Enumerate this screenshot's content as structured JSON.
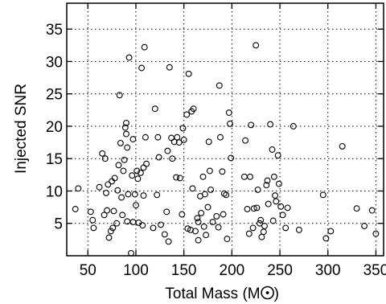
{
  "chart_data": {
    "type": "scatter",
    "title": "",
    "xlabel": "Total Mass (M",
    "xlabel_symbol": "sun-symbol",
    "ylabel": "Injected SNR",
    "xlim": [
      28,
      358
    ],
    "ylim": [
      0,
      39
    ],
    "xticks": [
      50,
      100,
      150,
      200,
      250,
      300,
      350
    ],
    "yticks": [
      5,
      10,
      15,
      20,
      25,
      30,
      35
    ],
    "grid": true,
    "marker": "open-circle",
    "marker_color": "#000000",
    "series": [
      {
        "points": [
          [
            37,
            7.2
          ],
          [
            40,
            10.4
          ],
          [
            53,
            6.8
          ],
          [
            55,
            5.5
          ],
          [
            56,
            4.3
          ],
          [
            62,
            10.6
          ],
          [
            65,
            15.8
          ],
          [
            67,
            6.3
          ],
          [
            68,
            15.0
          ],
          [
            69,
            9.7
          ],
          [
            70,
            7.0
          ],
          [
            71,
            11.0
          ],
          [
            72,
            2.8
          ],
          [
            74,
            3.8
          ],
          [
            75,
            11.5
          ],
          [
            76,
            4.3
          ],
          [
            77,
            6.9
          ],
          [
            78,
            12.0
          ],
          [
            80,
            5.0
          ],
          [
            81,
            10.1
          ],
          [
            82,
            14.0
          ],
          [
            83,
            24.8
          ],
          [
            84,
            17.4
          ],
          [
            85,
            9.0
          ],
          [
            86,
            6.3
          ],
          [
            87,
            13.1
          ],
          [
            88,
            14.8
          ],
          [
            89,
            19.8
          ],
          [
            90,
            20.5
          ],
          [
            90,
            18.8
          ],
          [
            91,
            16.7
          ],
          [
            91,
            5.3
          ],
          [
            92,
            9.5
          ],
          [
            93,
            30.6
          ],
          [
            95,
            0.4
          ],
          [
            96,
            12.4
          ],
          [
            97,
            18.0
          ],
          [
            97,
            5.2
          ],
          [
            99,
            9.5
          ],
          [
            100,
            7.8
          ],
          [
            101,
            13.1
          ],
          [
            102,
            11.9
          ],
          [
            103,
            5.1
          ],
          [
            105,
            12.8
          ],
          [
            106,
            29.0
          ],
          [
            107,
            4.7
          ],
          [
            108,
            9.3
          ],
          [
            108,
            13.6
          ],
          [
            109,
            32.2
          ],
          [
            110,
            18.3
          ],
          [
            111,
            14.2
          ],
          [
            118,
            4.3
          ],
          [
            120,
            22.7
          ],
          [
            122,
            9.4
          ],
          [
            123,
            18.3
          ],
          [
            124,
            15.2
          ],
          [
            126,
            4.8
          ],
          [
            130,
            3.3
          ],
          [
            132,
            6.8
          ],
          [
            133,
            16.2
          ],
          [
            134,
            2.2
          ],
          [
            135,
            29.1
          ],
          [
            137,
            18.2
          ],
          [
            138,
            15.0
          ],
          [
            140,
            17.6
          ],
          [
            142,
            12.1
          ],
          [
            143,
            18.3
          ],
          [
            145,
            17.5
          ],
          [
            146,
            12.0
          ],
          [
            148,
            6.4
          ],
          [
            149,
            19.7
          ],
          [
            150,
            17.9
          ],
          [
            153,
            21.8
          ],
          [
            154,
            4.2
          ],
          [
            155,
            28.1
          ],
          [
            157,
            4.0
          ],
          [
            158,
            22.3
          ],
          [
            159,
            10.4
          ],
          [
            160,
            22.7
          ],
          [
            162,
            3.8
          ],
          [
            164,
            5.8
          ],
          [
            165,
            5.2
          ],
          [
            165,
            2.4
          ],
          [
            167,
            9.2
          ],
          [
            168,
            6.6
          ],
          [
            170,
            12.2
          ],
          [
            171,
            4.5
          ],
          [
            172,
            9.5
          ],
          [
            173,
            3.2
          ],
          [
            175,
            7.5
          ],
          [
            176,
            17.6
          ],
          [
            177,
            13.1
          ],
          [
            178,
            10.2
          ],
          [
            180,
            5.2
          ],
          [
            184,
            6.1
          ],
          [
            186,
            4.4
          ],
          [
            187,
            26.3
          ],
          [
            188,
            18.3
          ],
          [
            190,
            13.0
          ],
          [
            191,
            6.4
          ],
          [
            192,
            9.6
          ],
          [
            194,
            9.4
          ],
          [
            195,
            2.6
          ],
          [
            197,
            22.1
          ],
          [
            198,
            20.4
          ],
          [
            199,
            15.1
          ],
          [
            213,
            12.2
          ],
          [
            214,
            17.8
          ],
          [
            216,
            7.2
          ],
          [
            218,
            3.4
          ],
          [
            219,
            12.2
          ],
          [
            220,
            20.2
          ],
          [
            222,
            4.3
          ],
          [
            223,
            7.3
          ],
          [
            225,
            32.5
          ],
          [
            226,
            7.4
          ],
          [
            227,
            10.2
          ],
          [
            229,
            5.0
          ],
          [
            230,
            5.5
          ],
          [
            231,
            2.9
          ],
          [
            233,
            3.7
          ],
          [
            234,
            4.6
          ],
          [
            236,
            10.9
          ],
          [
            237,
            11.6
          ],
          [
            238,
            8.0
          ],
          [
            240,
            20.3
          ],
          [
            242,
            16.4
          ],
          [
            243,
            5.4
          ],
          [
            244,
            12.2
          ],
          [
            245,
            9.3
          ],
          [
            246,
            8.4
          ],
          [
            248,
            15.5
          ],
          [
            249,
            11.1
          ],
          [
            251,
            7.6
          ],
          [
            253,
            6.3
          ],
          [
            256,
            4.3
          ],
          [
            258,
            7.4
          ],
          [
            264,
            20.0
          ],
          [
            270,
            4.0
          ],
          [
            295,
            9.4
          ],
          [
            298,
            2.7
          ],
          [
            303,
            3.8
          ],
          [
            315,
            16.9
          ],
          [
            330,
            7.3
          ],
          [
            338,
            4.6
          ],
          [
            346,
            7.0
          ],
          [
            350,
            3.4
          ]
        ]
      }
    ]
  }
}
